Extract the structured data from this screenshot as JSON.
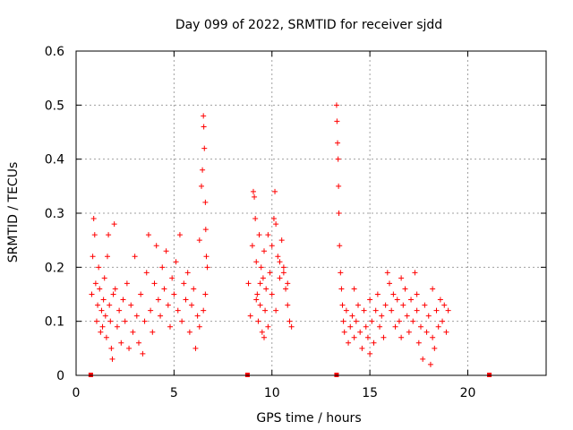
{
  "chart_data": {
    "type": "scatter",
    "title": "Day 099 of 2022, SRMTID for receiver sjdd",
    "xlabel": "GPS time / hours",
    "ylabel": "SRMTID / TECUs",
    "xlim": [
      0,
      24
    ],
    "ylim": [
      0,
      0.6
    ],
    "xticks": [
      0,
      5,
      10,
      15,
      20
    ],
    "xtick_labels": [
      "0",
      "5",
      "10",
      "15",
      "20"
    ],
    "yticks": [
      0,
      0.1,
      0.2,
      0.3,
      0.4,
      0.5,
      0.6
    ],
    "ytick_labels": [
      "0",
      "0.1",
      "0.2",
      "0.3",
      "0.4",
      "0.5",
      "0.6"
    ],
    "grid": true,
    "marker": "+",
    "colors": {
      "series": "#ff0000",
      "grid": "#a0a0a0",
      "axes": "#000000"
    },
    "gap_markers_x": [
      0.75,
      8.75,
      13.3,
      21.1
    ],
    "series": [
      {
        "name": "SRMTID",
        "points": [
          [
            0.8,
            0.15
          ],
          [
            0.85,
            0.22
          ],
          [
            0.9,
            0.29
          ],
          [
            0.95,
            0.26
          ],
          [
            1.0,
            0.17
          ],
          [
            1.05,
            0.1
          ],
          [
            1.1,
            0.13
          ],
          [
            1.15,
            0.2
          ],
          [
            1.2,
            0.16
          ],
          [
            1.25,
            0.08
          ],
          [
            1.3,
            0.12
          ],
          [
            1.35,
            0.09
          ],
          [
            1.4,
            0.14
          ],
          [
            1.45,
            0.18
          ],
          [
            1.5,
            0.11
          ],
          [
            1.55,
            0.07
          ],
          [
            1.6,
            0.22
          ],
          [
            1.65,
            0.26
          ],
          [
            1.7,
            0.13
          ],
          [
            1.75,
            0.1
          ],
          [
            1.8,
            0.05
          ],
          [
            1.85,
            0.03
          ],
          [
            1.9,
            0.15
          ],
          [
            1.95,
            0.28
          ],
          [
            2.0,
            0.16
          ],
          [
            2.1,
            0.09
          ],
          [
            2.2,
            0.12
          ],
          [
            2.3,
            0.06
          ],
          [
            2.4,
            0.14
          ],
          [
            2.5,
            0.1
          ],
          [
            2.6,
            0.17
          ],
          [
            2.7,
            0.05
          ],
          [
            2.8,
            0.13
          ],
          [
            2.9,
            0.08
          ],
          [
            3.0,
            0.22
          ],
          [
            3.1,
            0.11
          ],
          [
            3.2,
            0.06
          ],
          [
            3.3,
            0.15
          ],
          [
            3.4,
            0.04
          ],
          [
            3.5,
            0.1
          ],
          [
            3.6,
            0.19
          ],
          [
            3.7,
            0.26
          ],
          [
            3.8,
            0.12
          ],
          [
            3.9,
            0.08
          ],
          [
            4.0,
            0.17
          ],
          [
            4.1,
            0.24
          ],
          [
            4.2,
            0.14
          ],
          [
            4.3,
            0.11
          ],
          [
            4.4,
            0.2
          ],
          [
            4.5,
            0.16
          ],
          [
            4.6,
            0.23
          ],
          [
            4.7,
            0.13
          ],
          [
            4.8,
            0.09
          ],
          [
            4.9,
            0.18
          ],
          [
            5.0,
            0.15
          ],
          [
            5.1,
            0.21
          ],
          [
            5.2,
            0.12
          ],
          [
            5.3,
            0.26
          ],
          [
            5.4,
            0.1
          ],
          [
            5.5,
            0.17
          ],
          [
            5.6,
            0.14
          ],
          [
            5.7,
            0.19
          ],
          [
            5.8,
            0.08
          ],
          [
            5.9,
            0.13
          ],
          [
            6.0,
            0.16
          ],
          [
            6.1,
            0.05
          ],
          [
            6.2,
            0.11
          ],
          [
            6.3,
            0.25
          ],
          [
            6.4,
            0.35
          ],
          [
            6.45,
            0.38
          ],
          [
            6.5,
            0.48
          ],
          [
            6.52,
            0.46
          ],
          [
            6.55,
            0.42
          ],
          [
            6.6,
            0.32
          ],
          [
            6.62,
            0.27
          ],
          [
            6.65,
            0.22
          ],
          [
            6.7,
            0.2
          ],
          [
            6.6,
            0.15
          ],
          [
            6.5,
            0.12
          ],
          [
            6.3,
            0.09
          ],
          [
            8.8,
            0.17
          ],
          [
            8.9,
            0.11
          ],
          [
            9.0,
            0.24
          ],
          [
            9.05,
            0.34
          ],
          [
            9.1,
            0.33
          ],
          [
            9.15,
            0.29
          ],
          [
            9.2,
            0.21
          ],
          [
            9.25,
            0.15
          ],
          [
            9.3,
            0.1
          ],
          [
            9.35,
            0.26
          ],
          [
            9.4,
            0.13
          ],
          [
            9.45,
            0.2
          ],
          [
            9.5,
            0.08
          ],
          [
            9.55,
            0.18
          ],
          [
            9.6,
            0.23
          ],
          [
            9.65,
            0.12
          ],
          [
            9.7,
            0.16
          ],
          [
            9.8,
            0.09
          ],
          [
            9.9,
            0.19
          ],
          [
            10.0,
            0.24
          ],
          [
            10.1,
            0.29
          ],
          [
            10.15,
            0.34
          ],
          [
            10.2,
            0.28
          ],
          [
            10.3,
            0.22
          ],
          [
            10.4,
            0.18
          ],
          [
            10.5,
            0.25
          ],
          [
            10.6,
            0.2
          ],
          [
            10.7,
            0.16
          ],
          [
            10.8,
            0.13
          ],
          [
            10.9,
            0.1
          ],
          [
            11.0,
            0.09
          ],
          [
            9.2,
            0.14
          ],
          [
            9.6,
            0.07
          ],
          [
            10.0,
            0.15
          ],
          [
            10.4,
            0.21
          ],
          [
            10.8,
            0.17
          ],
          [
            9.8,
            0.26
          ],
          [
            10.2,
            0.12
          ],
          [
            10.6,
            0.19
          ],
          [
            9.4,
            0.17
          ],
          [
            13.3,
            0.5
          ],
          [
            13.32,
            0.47
          ],
          [
            13.35,
            0.43
          ],
          [
            13.38,
            0.4
          ],
          [
            13.4,
            0.35
          ],
          [
            13.42,
            0.3
          ],
          [
            13.45,
            0.24
          ],
          [
            13.5,
            0.19
          ],
          [
            13.55,
            0.16
          ],
          [
            13.6,
            0.13
          ],
          [
            13.65,
            0.1
          ],
          [
            13.7,
            0.08
          ],
          [
            13.8,
            0.12
          ],
          [
            13.9,
            0.06
          ],
          [
            14.0,
            0.09
          ],
          [
            14.1,
            0.11
          ],
          [
            14.2,
            0.07
          ],
          [
            14.3,
            0.1
          ],
          [
            14.4,
            0.13
          ],
          [
            14.5,
            0.08
          ],
          [
            14.6,
            0.05
          ],
          [
            14.7,
            0.12
          ],
          [
            14.8,
            0.09
          ],
          [
            14.9,
            0.07
          ],
          [
            15.0,
            0.14
          ],
          [
            15.1,
            0.1
          ],
          [
            15.2,
            0.06
          ],
          [
            15.3,
            0.12
          ],
          [
            15.4,
            0.15
          ],
          [
            15.5,
            0.09
          ],
          [
            15.6,
            0.11
          ],
          [
            15.7,
            0.07
          ],
          [
            15.8,
            0.13
          ],
          [
            15.9,
            0.19
          ],
          [
            16.0,
            0.17
          ],
          [
            16.1,
            0.12
          ],
          [
            16.2,
            0.15
          ],
          [
            16.3,
            0.09
          ],
          [
            16.4,
            0.14
          ],
          [
            16.5,
            0.1
          ],
          [
            16.6,
            0.07
          ],
          [
            16.7,
            0.13
          ],
          [
            16.8,
            0.16
          ],
          [
            16.9,
            0.11
          ],
          [
            17.0,
            0.08
          ],
          [
            17.1,
            0.14
          ],
          [
            17.2,
            0.1
          ],
          [
            17.3,
            0.19
          ],
          [
            17.4,
            0.12
          ],
          [
            17.5,
            0.06
          ],
          [
            17.6,
            0.09
          ],
          [
            17.7,
            0.03
          ],
          [
            17.8,
            0.13
          ],
          [
            17.9,
            0.08
          ],
          [
            18.0,
            0.11
          ],
          [
            18.1,
            0.02
          ],
          [
            18.2,
            0.16
          ],
          [
            18.3,
            0.05
          ],
          [
            18.4,
            0.12
          ],
          [
            18.5,
            0.09
          ],
          [
            18.6,
            0.14
          ],
          [
            18.7,
            0.1
          ],
          [
            18.8,
            0.13
          ],
          [
            18.9,
            0.08
          ],
          [
            19.0,
            0.12
          ],
          [
            14.2,
            0.16
          ],
          [
            15.0,
            0.04
          ],
          [
            16.6,
            0.18
          ],
          [
            17.4,
            0.15
          ],
          [
            18.2,
            0.07
          ]
        ]
      }
    ]
  }
}
